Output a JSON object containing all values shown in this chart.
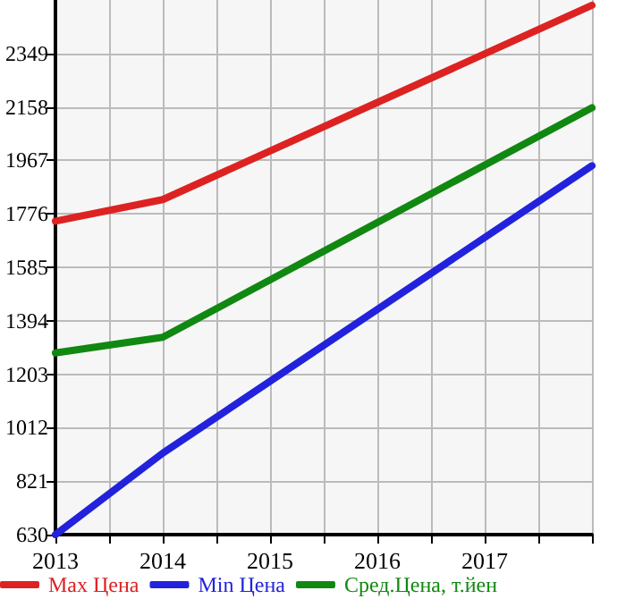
{
  "chart_data": {
    "type": "line",
    "x": [
      2013,
      2014,
      2018
    ],
    "series": [
      {
        "name": "Max Цена",
        "color": "#dd2222",
        "values": [
          1750,
          1827,
          2521
        ]
      },
      {
        "name": "Min Цена",
        "color": "#2222dd",
        "values": [
          630,
          921,
          1948
        ]
      },
      {
        "name": "Сред.Цена, т.йен",
        "color": "#118811",
        "values": [
          1279,
          1335,
          2155
        ]
      }
    ],
    "xlim": [
      2013,
      2018
    ],
    "xticks": [
      2013,
      {
        "value": 2013.5,
        "label": null
      },
      2014,
      {
        "value": 2014.5,
        "label": null
      },
      2015,
      {
        "value": 2015.5,
        "label": null
      },
      2016,
      {
        "value": 2016.5,
        "label": null
      },
      2017,
      {
        "value": 2017.5,
        "label": null
      },
      {
        "value": 2018,
        "label": null
      }
    ],
    "ylim": [
      630,
      2540
    ],
    "yticks": [
      630,
      821,
      1012,
      1203,
      1394,
      1585,
      1776,
      1967,
      2158,
      2349
    ],
    "grid": true,
    "legend": "bottom",
    "marker": "none",
    "line_style": "solid"
  }
}
